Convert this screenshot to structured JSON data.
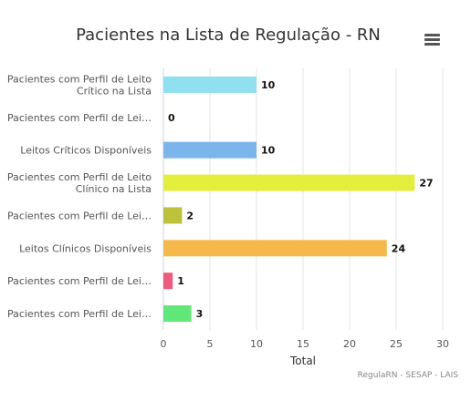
{
  "menu_icon": "hamburger-menu-icon",
  "credits": "RegulaRN - SESAP - LAIS",
  "chart_data": {
    "type": "bar",
    "orientation": "horizontal",
    "title": "Pacientes na Lista de Regulação - RN",
    "xlabel": "Total",
    "ylabel": "",
    "xlim": [
      0,
      30
    ],
    "xticks": [
      0,
      5,
      10,
      15,
      20,
      25,
      30
    ],
    "grid": true,
    "legend": "none",
    "categories": [
      [
        "Pacientes com Perfil de Leito",
        "Crítico na Lista"
      ],
      [
        "Pacientes com Perfil de Lei…"
      ],
      [
        "Leitos Críticos Disponíveis"
      ],
      [
        "Pacientes com Perfil de Leito",
        "Clínico na Lista"
      ],
      [
        "Pacientes com Perfil de Lei…"
      ],
      [
        "Leitos Clínicos Disponíveis"
      ],
      [
        "Pacientes com Perfil de Lei…"
      ],
      [
        "Pacientes com Perfil de Lei…"
      ]
    ],
    "values": [
      10,
      0,
      10,
      27,
      2,
      24,
      1,
      3
    ],
    "colors": [
      "#90e0ef",
      "#434348",
      "#7cb5ec",
      "#e4ee3c",
      "#bcc23a",
      "#f7b84b",
      "#ef5b7c",
      "#5fe878"
    ]
  }
}
